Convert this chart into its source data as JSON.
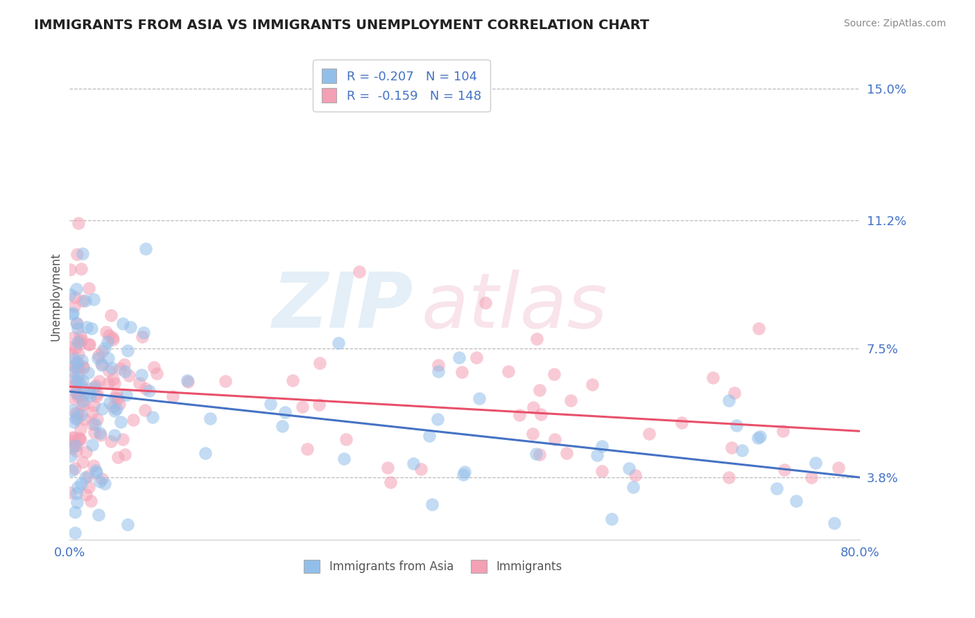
{
  "title": "IMMIGRANTS FROM ASIA VS IMMIGRANTS UNEMPLOYMENT CORRELATION CHART",
  "source": "Source: ZipAtlas.com",
  "ylabel": "Unemployment",
  "xlim": [
    0.0,
    0.8
  ],
  "ylim": [
    0.02,
    0.16
  ],
  "yticks": [
    0.038,
    0.075,
    0.112,
    0.15
  ],
  "ytick_labels": [
    "3.8%",
    "7.5%",
    "11.2%",
    "15.0%"
  ],
  "xticks": [
    0.0,
    0.1,
    0.2,
    0.3,
    0.4,
    0.5,
    0.6,
    0.7,
    0.8
  ],
  "blue_R": -0.207,
  "blue_N": 104,
  "pink_R": -0.159,
  "pink_N": 148,
  "blue_color": "#92BFEA",
  "pink_color": "#F4A0B5",
  "blue_line_color": "#4472C4",
  "pink_line_color": "#E8506A",
  "legend_label_blue": "Immigrants from Asia",
  "legend_label_pink": "Immigrants",
  "background_color": "#FFFFFF",
  "grid_color": "#BBBBBB",
  "title_color": "#222222",
  "axis_label_color": "#555555",
  "tick_label_color": "#4472C4",
  "figsize": [
    14.06,
    8.92
  ],
  "dpi": 100
}
